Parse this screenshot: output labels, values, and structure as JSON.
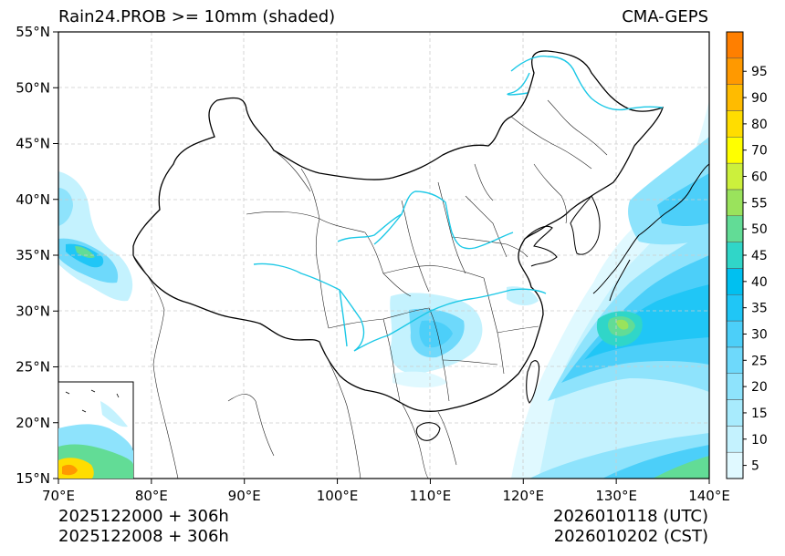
{
  "header": {
    "title_left": "Rain24.PROB >= 10mm (shaded)",
    "title_right": "CMA-GEPS"
  },
  "footer": {
    "init_utc": "2025122000 + 306h",
    "init_cst": "2025122008 + 306h",
    "valid_utc": "2026010118 (UTC)",
    "valid_cst": "2026010202 (CST)"
  },
  "map": {
    "lat_range": [
      15,
      55
    ],
    "lon_range": [
      70,
      140
    ],
    "lat_ticks": [
      {
        "value": 55,
        "label": "55°N"
      },
      {
        "value": 50,
        "label": "50°N"
      },
      {
        "value": 45,
        "label": "45°N"
      },
      {
        "value": 40,
        "label": "40°N"
      },
      {
        "value": 35,
        "label": "35°N"
      },
      {
        "value": 30,
        "label": "30°N"
      },
      {
        "value": 25,
        "label": "25°N"
      },
      {
        "value": 20,
        "label": "20°N"
      },
      {
        "value": 15,
        "label": "15°N"
      }
    ],
    "lon_ticks": [
      {
        "value": 70,
        "label": "70°E"
      },
      {
        "value": 80,
        "label": "80°E"
      },
      {
        "value": 90,
        "label": "90°E"
      },
      {
        "value": 100,
        "label": "100°E"
      },
      {
        "value": 110,
        "label": "110°E"
      },
      {
        "value": 120,
        "label": "120°E"
      },
      {
        "value": 130,
        "label": "130°E"
      },
      {
        "value": 140,
        "label": "140°E"
      }
    ]
  },
  "colorbar": {
    "levels": [
      {
        "label": "5",
        "color": "#e0f9ff"
      },
      {
        "label": "10",
        "color": "#c4f2fe"
      },
      {
        "label": "15",
        "color": "#a8ebfd"
      },
      {
        "label": "20",
        "color": "#8ee3fc"
      },
      {
        "label": "25",
        "color": "#6ed9fb"
      },
      {
        "label": "30",
        "color": "#4ccff9"
      },
      {
        "label": "35",
        "color": "#20c6f6"
      },
      {
        "label": "40",
        "color": "#00c0f0"
      },
      {
        "label": "45",
        "color": "#30d6c8"
      },
      {
        "label": "50",
        "color": "#62dc96"
      },
      {
        "label": "55",
        "color": "#9ae35c"
      },
      {
        "label": "60",
        "color": "#ccf03c"
      },
      {
        "label": "70",
        "color": "#ffff00"
      },
      {
        "label": "80",
        "color": "#ffdd00"
      },
      {
        "label": "90",
        "color": "#ffbb00"
      },
      {
        "label": "95",
        "color": "#ff9900"
      },
      {
        "label": "",
        "color": "#ff7f00"
      }
    ]
  },
  "colors": {
    "river": "#1cc8e6",
    "border": "#000000",
    "grid": "#cccccc"
  }
}
